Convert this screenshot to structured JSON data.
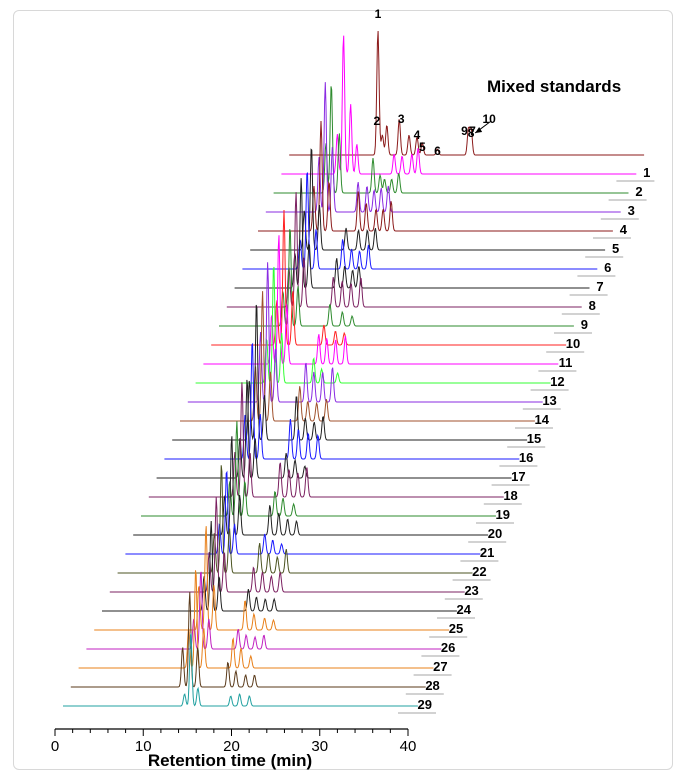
{
  "chart_data": {
    "type": "line",
    "title": "Mixed standards",
    "xlabel": "Retention time (min)",
    "ylabel": "",
    "xlim": [
      0,
      40
    ],
    "x_ticks": [
      0,
      10,
      20,
      30,
      40
    ],
    "grid": false,
    "peak_labels": [
      "1",
      "2",
      "3",
      "4",
      "5",
      "6",
      "7",
      "8",
      "9",
      "10"
    ],
    "standards": {
      "name": "",
      "color": "#8b1a1a",
      "peaks": [
        {
          "rt": 10.0,
          "height": 125
        },
        {
          "rt": 10.5,
          "height": 20
        },
        {
          "rt": 11.0,
          "height": 30
        },
        {
          "rt": 12.4,
          "height": 36
        },
        {
          "rt": 13.5,
          "height": 20
        },
        {
          "rt": 14.4,
          "height": 18
        },
        {
          "rt": 15.0,
          "height": 12
        },
        {
          "rt": 16.7,
          "height": 6
        },
        {
          "rt": 20.2,
          "height": 26
        },
        {
          "rt": 20.5,
          "height": 26
        }
      ]
    },
    "series": [
      {
        "name": "1",
        "color": "#ff00ff",
        "peaks": [
          {
            "rt": 7.0,
            "height": 140
          },
          {
            "rt": 6.3,
            "height": 40
          },
          {
            "rt": 7.8,
            "height": 70
          },
          {
            "rt": 8.5,
            "height": 30
          },
          {
            "rt": 12.7,
            "height": 20
          },
          {
            "rt": 13.6,
            "height": 18
          },
          {
            "rt": 14.7,
            "height": 20
          },
          {
            "rt": 15.4,
            "height": 26
          }
        ]
      },
      {
        "name": "2",
        "color": "#2e8b2e",
        "peaks": [
          {
            "rt": 6.5,
            "height": 110
          },
          {
            "rt": 5.9,
            "height": 50
          },
          {
            "rt": 7.4,
            "height": 60
          },
          {
            "rt": 11.2,
            "height": 35
          },
          {
            "rt": 12.0,
            "height": 18
          },
          {
            "rt": 12.5,
            "height": 14
          },
          {
            "rt": 13.3,
            "height": 14
          },
          {
            "rt": 14.1,
            "height": 20
          }
        ]
      },
      {
        "name": "3",
        "color": "#8a2be2",
        "peaks": [
          {
            "rt": 6.7,
            "height": 130
          },
          {
            "rt": 6.0,
            "height": 55
          },
          {
            "rt": 7.5,
            "height": 65
          },
          {
            "rt": 10.4,
            "height": 30
          },
          {
            "rt": 11.4,
            "height": 26
          },
          {
            "rt": 12.2,
            "height": 22
          },
          {
            "rt": 13.0,
            "height": 24
          },
          {
            "rt": 13.8,
            "height": 26
          }
        ]
      },
      {
        "name": "4",
        "color": "#8b1a1a",
        "peaks": [
          {
            "rt": 7.1,
            "height": 110
          },
          {
            "rt": 6.3,
            "height": 45
          },
          {
            "rt": 8.0,
            "height": 50
          },
          {
            "rt": 11.3,
            "height": 40
          },
          {
            "rt": 12.2,
            "height": 28
          },
          {
            "rt": 13.3,
            "height": 22
          },
          {
            "rt": 14.1,
            "height": 22
          },
          {
            "rt": 15.0,
            "height": 30
          }
        ]
      },
      {
        "name": "5",
        "color": "#202020",
        "peaks": [
          {
            "rt": 6.9,
            "height": 105
          },
          {
            "rt": 6.1,
            "height": 40
          },
          {
            "rt": 7.8,
            "height": 45
          },
          {
            "rt": 10.8,
            "height": 22
          },
          {
            "rt": 12.2,
            "height": 20
          },
          {
            "rt": 13.2,
            "height": 20
          },
          {
            "rt": 14.1,
            "height": 22
          }
        ]
      },
      {
        "name": "6",
        "color": "#1a1aff",
        "peaks": [
          {
            "rt": 7.3,
            "height": 100
          },
          {
            "rt": 6.5,
            "height": 30
          },
          {
            "rt": 8.3,
            "height": 40
          },
          {
            "rt": 11.3,
            "height": 30
          },
          {
            "rt": 12.3,
            "height": 20
          },
          {
            "rt": 13.2,
            "height": 18
          },
          {
            "rt": 14.2,
            "height": 24
          }
        ]
      },
      {
        "name": "7",
        "color": "#202020",
        "peaks": [
          {
            "rt": 7.5,
            "height": 110
          },
          {
            "rt": 6.8,
            "height": 35
          },
          {
            "rt": 8.4,
            "height": 45
          },
          {
            "rt": 11.5,
            "height": 30
          },
          {
            "rt": 12.4,
            "height": 22
          },
          {
            "rt": 13.3,
            "height": 18
          },
          {
            "rt": 14.0,
            "height": 22
          }
        ]
      },
      {
        "name": "8",
        "color": "#7b2060",
        "peaks": [
          {
            "rt": 7.8,
            "height": 115
          },
          {
            "rt": 7.0,
            "height": 40
          },
          {
            "rt": 8.7,
            "height": 50
          },
          {
            "rt": 12.0,
            "height": 30
          },
          {
            "rt": 13.0,
            "height": 26
          },
          {
            "rt": 14.0,
            "height": 24
          },
          {
            "rt": 15.1,
            "height": 30
          }
        ]
      },
      {
        "name": "9",
        "color": "#2e8b2e",
        "peaks": [
          {
            "rt": 8.0,
            "height": 100
          },
          {
            "rt": 7.2,
            "height": 35
          },
          {
            "rt": 8.9,
            "height": 40
          },
          {
            "rt": 12.5,
            "height": 22
          },
          {
            "rt": 13.9,
            "height": 14
          },
          {
            "rt": 15.0,
            "height": 10
          }
        ]
      },
      {
        "name": "10",
        "color": "#ff2020",
        "peaks": [
          {
            "rt": 8.2,
            "height": 135
          },
          {
            "rt": 7.4,
            "height": 45
          },
          {
            "rt": 9.2,
            "height": 55
          },
          {
            "rt": 12.7,
            "height": 20
          },
          {
            "rt": 14.0,
            "height": 14
          },
          {
            "rt": 15.0,
            "height": 12
          }
        ]
      },
      {
        "name": "11",
        "color": "#ff00ff",
        "peaks": [
          {
            "rt": 8.5,
            "height": 130
          },
          {
            "rt": 7.7,
            "height": 50
          },
          {
            "rt": 9.4,
            "height": 60
          },
          {
            "rt": 13.0,
            "height": 30
          },
          {
            "rt": 13.9,
            "height": 26
          },
          {
            "rt": 14.9,
            "height": 24
          },
          {
            "rt": 16.0,
            "height": 28
          }
        ]
      },
      {
        "name": "12",
        "color": "#33ff33",
        "peaks": [
          {
            "rt": 8.8,
            "height": 120
          },
          {
            "rt": 8.0,
            "height": 45
          },
          {
            "rt": 9.7,
            "height": 50
          },
          {
            "rt": 13.3,
            "height": 25
          },
          {
            "rt": 14.2,
            "height": 14
          },
          {
            "rt": 16.0,
            "height": 10
          }
        ]
      },
      {
        "name": "13",
        "color": "#8a2be2",
        "peaks": [
          {
            "rt": 9.0,
            "height": 140
          },
          {
            "rt": 8.2,
            "height": 70
          },
          {
            "rt": 9.9,
            "height": 55
          },
          {
            "rt": 13.3,
            "height": 40
          },
          {
            "rt": 14.2,
            "height": 30
          },
          {
            "rt": 15.2,
            "height": 30
          },
          {
            "rt": 16.3,
            "height": 35
          }
        ]
      },
      {
        "name": "14",
        "color": "#a0522d",
        "peaks": [
          {
            "rt": 9.3,
            "height": 130
          },
          {
            "rt": 8.5,
            "height": 55
          },
          {
            "rt": 10.2,
            "height": 50
          },
          {
            "rt": 13.5,
            "height": 35
          },
          {
            "rt": 14.4,
            "height": 20
          },
          {
            "rt": 15.4,
            "height": 18
          },
          {
            "rt": 16.5,
            "height": 22
          }
        ]
      },
      {
        "name": "15",
        "color": "#202020",
        "peaks": [
          {
            "rt": 9.5,
            "height": 140
          },
          {
            "rt": 8.7,
            "height": 60
          },
          {
            "rt": 10.4,
            "height": 45
          },
          {
            "rt": 14.0,
            "height": 45
          },
          {
            "rt": 15.0,
            "height": 22
          },
          {
            "rt": 16.0,
            "height": 18
          },
          {
            "rt": 17.0,
            "height": 24
          }
        ]
      },
      {
        "name": "16",
        "color": "#1a1aff",
        "peaks": [
          {
            "rt": 9.9,
            "height": 120
          },
          {
            "rt": 9.1,
            "height": 45
          },
          {
            "rt": 10.8,
            "height": 45
          },
          {
            "rt": 14.2,
            "height": 40
          },
          {
            "rt": 15.1,
            "height": 30
          },
          {
            "rt": 16.2,
            "height": 26
          },
          {
            "rt": 17.3,
            "height": 24
          }
        ]
      },
      {
        "name": "17",
        "color": "#202020",
        "peaks": [
          {
            "rt": 10.2,
            "height": 100
          },
          {
            "rt": 9.4,
            "height": 40
          },
          {
            "rt": 11.1,
            "height": 40
          },
          {
            "rt": 14.6,
            "height": 25
          },
          {
            "rt": 15.6,
            "height": 18
          },
          {
            "rt": 16.7,
            "height": 12
          }
        ]
      },
      {
        "name": "18",
        "color": "#7b2060",
        "peaks": [
          {
            "rt": 10.5,
            "height": 115
          },
          {
            "rt": 9.7,
            "height": 45
          },
          {
            "rt": 11.4,
            "height": 45
          },
          {
            "rt": 14.8,
            "height": 35
          },
          {
            "rt": 15.8,
            "height": 28
          },
          {
            "rt": 16.8,
            "height": 24
          },
          {
            "rt": 17.8,
            "height": 30
          }
        ]
      },
      {
        "name": "19",
        "color": "#2e8b2e",
        "peaks": [
          {
            "rt": 10.8,
            "height": 95
          },
          {
            "rt": 10.0,
            "height": 35
          },
          {
            "rt": 11.7,
            "height": 35
          },
          {
            "rt": 15.1,
            "height": 25
          },
          {
            "rt": 16.0,
            "height": 18
          },
          {
            "rt": 17.2,
            "height": 12
          }
        ]
      },
      {
        "name": "20",
        "color": "#202020",
        "peaks": [
          {
            "rt": 11.1,
            "height": 100
          },
          {
            "rt": 10.3,
            "height": 40
          },
          {
            "rt": 12.0,
            "height": 40
          },
          {
            "rt": 15.4,
            "height": 30
          },
          {
            "rt": 16.4,
            "height": 22
          },
          {
            "rt": 17.4,
            "height": 16
          },
          {
            "rt": 18.4,
            "height": 14
          }
        ]
      },
      {
        "name": "21",
        "color": "#1a1aff",
        "peaks": [
          {
            "rt": 11.4,
            "height": 85
          },
          {
            "rt": 10.6,
            "height": 30
          },
          {
            "rt": 12.3,
            "height": 30
          },
          {
            "rt": 15.7,
            "height": 20
          },
          {
            "rt": 16.6,
            "height": 14
          },
          {
            "rt": 17.6,
            "height": 10
          }
        ]
      },
      {
        "name": "22",
        "color": "#4b5320",
        "peaks": [
          {
            "rt": 11.7,
            "height": 110
          },
          {
            "rt": 10.9,
            "height": 40
          },
          {
            "rt": 12.6,
            "height": 45
          },
          {
            "rt": 16.0,
            "height": 30
          },
          {
            "rt": 17.0,
            "height": 20
          },
          {
            "rt": 18.0,
            "height": 16
          },
          {
            "rt": 19.0,
            "height": 24
          }
        ]
      },
      {
        "name": "23",
        "color": "#7b2060",
        "peaks": [
          {
            "rt": 12.0,
            "height": 95
          },
          {
            "rt": 11.2,
            "height": 40
          },
          {
            "rt": 12.9,
            "height": 40
          },
          {
            "rt": 16.2,
            "height": 25
          },
          {
            "rt": 17.2,
            "height": 20
          },
          {
            "rt": 18.2,
            "height": 16
          },
          {
            "rt": 19.2,
            "height": 20
          }
        ]
      },
      {
        "name": "24",
        "color": "#202020",
        "peaks": [
          {
            "rt": 12.3,
            "height": 90
          },
          {
            "rt": 11.5,
            "height": 35
          },
          {
            "rt": 13.2,
            "height": 35
          },
          {
            "rt": 16.5,
            "height": 22
          },
          {
            "rt": 17.4,
            "height": 14
          },
          {
            "rt": 18.4,
            "height": 12
          },
          {
            "rt": 19.4,
            "height": 12
          }
        ]
      },
      {
        "name": "25",
        "color": "#e8801a",
        "peaks": [
          {
            "rt": 12.6,
            "height": 105
          },
          {
            "rt": 11.8,
            "height": 45
          },
          {
            "rt": 13.5,
            "height": 45
          },
          {
            "rt": 17.0,
            "height": 30
          },
          {
            "rt": 18.0,
            "height": 16
          },
          {
            "rt": 19.2,
            "height": 12
          },
          {
            "rt": 20.2,
            "height": 10
          }
        ]
      },
      {
        "name": "26",
        "color": "#c020c0",
        "peaks": [
          {
            "rt": 12.9,
            "height": 80
          },
          {
            "rt": 12.1,
            "height": 30
          },
          {
            "rt": 13.8,
            "height": 30
          },
          {
            "rt": 17.1,
            "height": 20
          },
          {
            "rt": 18.0,
            "height": 14
          },
          {
            "rt": 19.0,
            "height": 12
          },
          {
            "rt": 20.0,
            "height": 14
          }
        ]
      },
      {
        "name": "27",
        "color": "#e8801a",
        "peaks": [
          {
            "rt": 13.2,
            "height": 100
          },
          {
            "rt": 12.4,
            "height": 40
          },
          {
            "rt": 14.1,
            "height": 40
          },
          {
            "rt": 17.4,
            "height": 30
          },
          {
            "rt": 18.3,
            "height": 20
          },
          {
            "rt": 19.4,
            "height": 12
          }
        ]
      },
      {
        "name": "28",
        "color": "#5a3a1a",
        "peaks": [
          {
            "rt": 13.4,
            "height": 95
          },
          {
            "rt": 12.6,
            "height": 40
          },
          {
            "rt": 14.3,
            "height": 40
          },
          {
            "rt": 17.7,
            "height": 25
          },
          {
            "rt": 18.6,
            "height": 16
          },
          {
            "rt": 19.7,
            "height": 12
          },
          {
            "rt": 20.7,
            "height": 12
          }
        ]
      },
      {
        "name": "29",
        "color": "#20a0a0",
        "peaks": [
          {
            "rt": 14.4,
            "height": 75
          },
          {
            "rt": 13.7,
            "height": 12
          },
          {
            "rt": 15.2,
            "height": 18
          },
          {
            "rt": 18.9,
            "height": 10
          },
          {
            "rt": 19.9,
            "height": 12
          },
          {
            "rt": 21.0,
            "height": 10
          }
        ]
      }
    ]
  }
}
